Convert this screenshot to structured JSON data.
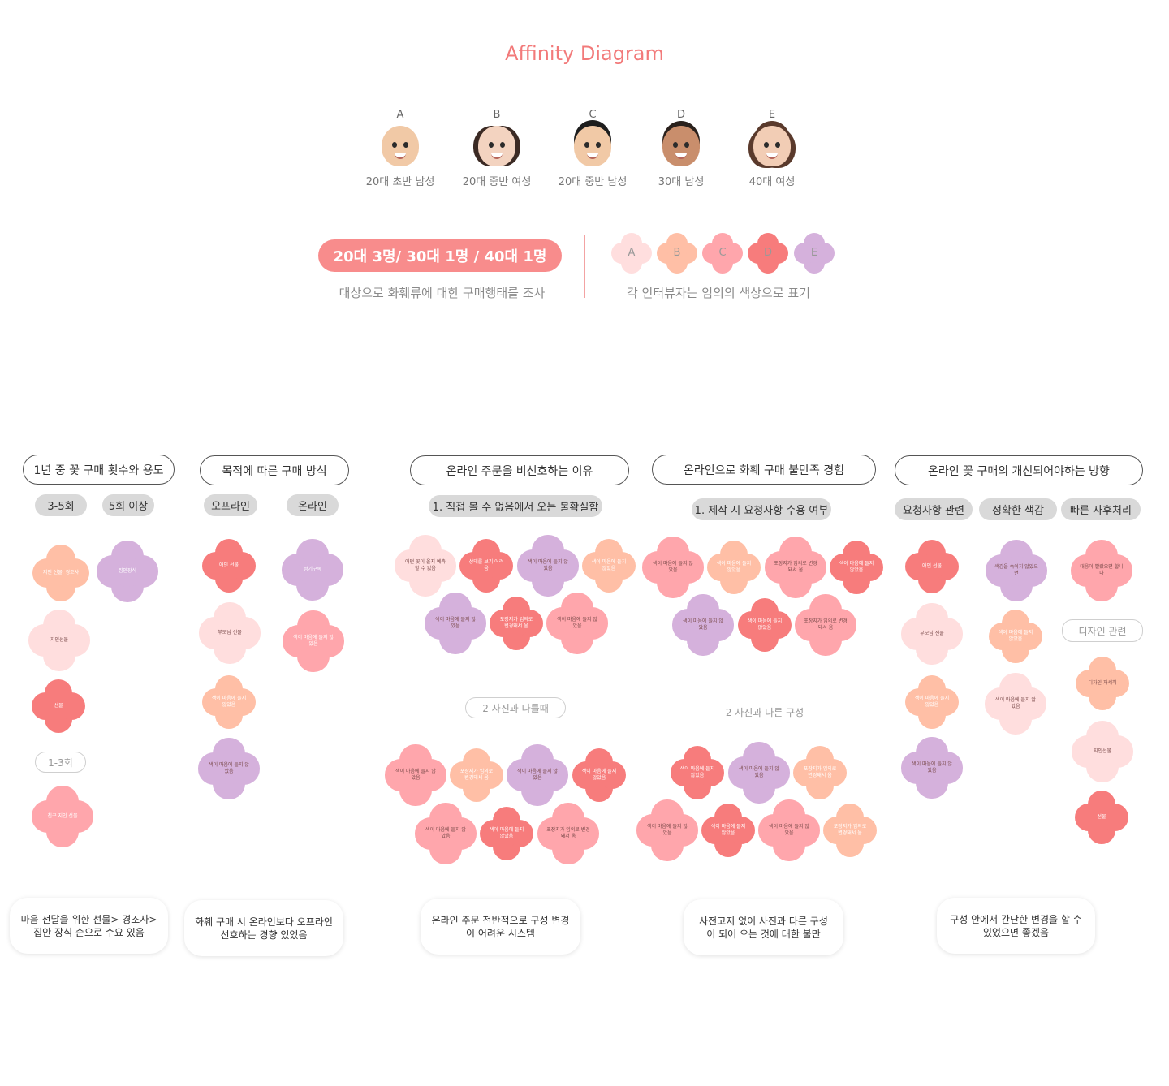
{
  "title": "Affinity Diagram",
  "colors": {
    "A": "#ffdede",
    "B": "#ffbfa6",
    "C": "#ffa6ac",
    "D": "#f77c7c",
    "E": "#d5b1dc"
  },
  "personas": [
    {
      "letter": "A",
      "caption": "20대 초반 남성"
    },
    {
      "letter": "B",
      "caption": "20대 중반 여성"
    },
    {
      "letter": "C",
      "caption": "20대 중반 남성"
    },
    {
      "letter": "D",
      "caption": "30대 남성"
    },
    {
      "letter": "E",
      "caption": "40대 여성"
    }
  ],
  "summary": {
    "pill": "20대 3명/ 30대 1명 / 40대 1명",
    "left_caption": "대상으로 화훼류에 대한 구매행태를 조사",
    "right_caption": "각 인터뷰자는 임의의 색상으로 표기",
    "legend": [
      "A",
      "B",
      "C",
      "D",
      "E"
    ]
  },
  "headers": [
    "1년 중 꽃 구매 횟수와 용도",
    "목적에 따른 구매 방식",
    "온라인 주문을 비선호하는 이유",
    "온라인으로 화훼 구매 불만족 경험",
    "온라인 꽃 구매의 개선되어야하는 방향"
  ],
  "subtags": [
    "3-5회",
    "5회 이상",
    "오프라인",
    "온라인",
    "1. 직접 볼 수 없음에서 오는 불확실함",
    "1. 제작 시 요청사항 수용 여부",
    "요청사항 관련",
    "정확한 색감",
    "빠른 사후처리"
  ],
  "outline_tags": [
    "1-3회",
    "2  사진과 다를때",
    "디자인 관련"
  ],
  "plain_label": "2 사진과 다른 구성",
  "notes": [
    "지인 선물, 경조사",
    "집안장식",
    "지인선물",
    "선물",
    "친구 지인 선물",
    "애인 선물",
    "정기구독",
    "부모님 선물",
    "색이 마음에 들지 않았음",
    "색이 마음에 들지 않았음",
    "색이 마음에 들지 않았음",
    "어떤 꽃이 올지 예측할 수 없음",
    "상태를 보기 어려움",
    "색이 마음에 들지 않았음",
    "색이 마음에 들지 않았음",
    "색이 마음에 들지 않았음",
    "포장지가 임의로 변경돼서 옴",
    "색이 마음에 들지 않았음",
    "색이 마음에 들지 않았음",
    "포장지가 임의로 변경돼서 옴",
    "색이 마음에 들지 않았음",
    "색이 마음에 들지 않았음",
    "색이 마음에 들지 않았음",
    "색이 마음에 들지 않았음",
    "포장지가 임의로 변경돼서 옴",
    "색이 마음에 들지 않았음",
    "색이 마음에 들지 않았음",
    "포장지가 임의로 변경돼서 옴",
    "색이 마음에 들지 않았음",
    "색이 마음에 들지 않았음",
    "색이 마음에 들지 않았음",
    "포장지가 임의로 변경돼서 옴",
    "색이 마음에 들지 않았음",
    "색이 마음에 들지 않았음",
    "포장지가 임의로 변경돼서 옴",
    "색이 마음에 들지 않았음",
    "색이 마음에 들지 않았음",
    "색이 마음에 들지 않았음",
    "포장지가 임의로 변경돼서 옴",
    "색이 마음에 들지 않았음",
    "색이 마음에 들지 않았음",
    "애인 선물",
    "색감을 속이지 않았으면",
    "대응이 빨랐으면 합니다",
    "부모님 선물",
    "색이 마음에 들지 않았음",
    "색이 마음에 들지 않았음",
    "디자인 자세히",
    "색이 마음에 들지 않았음",
    "색이 마음에 들지 않았음",
    "지인선물",
    "선물"
  ],
  "cards": [
    "마음 전달을 위한 선물> 경조사> 집안 장식 순으로 수요 있음",
    "화훼 구매 시  온라인보다 오프라인 선호하는 경향 있었음",
    "온라인 주문 전반적으로 구성 변경이 어려운 시스템",
    "사전고지 없이 사진과 다른 구성 이 되어 오는 것에 대한 불만",
    "구성 안에서 간단한 변경을 할 수 있었으면 좋겠음"
  ]
}
